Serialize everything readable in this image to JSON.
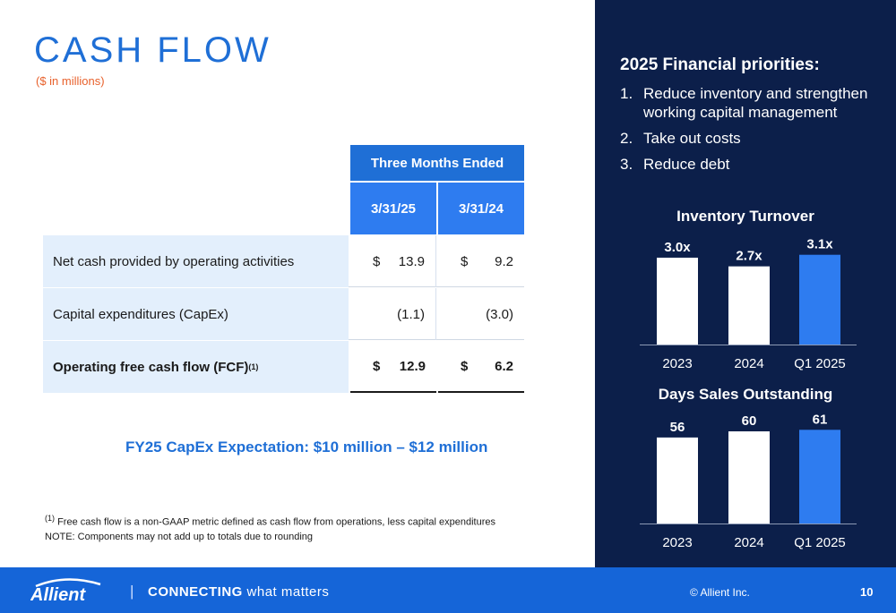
{
  "header": {
    "title": "CASH FLOW",
    "subtitle": "($ in millions)"
  },
  "table": {
    "group_header": "Three Months Ended",
    "columns": [
      "3/31/25",
      "3/31/24"
    ],
    "rows": [
      {
        "label": "Net cash provided by operating activities",
        "currency": "$",
        "v1": "13.9",
        "v2": "9.2"
      },
      {
        "label": "Capital expenditures (CapEx)",
        "currency": "",
        "v1": "(1.1)",
        "v2": "(3.0)"
      },
      {
        "label": "Operating free cash flow (FCF)",
        "label_sup": "(1)",
        "currency": "$",
        "v1": "12.9",
        "v2": "6.2"
      }
    ]
  },
  "capex_expectation": "FY25 CapEx Expectation: $10 million – $12 million",
  "footnotes": {
    "fn1_marker": "(1)",
    "fn1_text": "Free cash flow is a non-GAAP metric defined as cash flow from operations, less capital expenditures",
    "note": "NOTE: Components may not add up to totals due to rounding"
  },
  "priorities": {
    "title": "2025 Financial priorities:",
    "items": [
      {
        "num": "1.",
        "text": "Reduce inventory and strengthen working capital management"
      },
      {
        "num": "2.",
        "text": "Take out costs"
      },
      {
        "num": "3.",
        "text": "Reduce debt"
      }
    ]
  },
  "chart_data": [
    {
      "type": "bar",
      "title": "Inventory Turnover",
      "categories": [
        "2023",
        "2024",
        "Q1 2025"
      ],
      "values": [
        3.0,
        2.7,
        3.1
      ],
      "labels": [
        "3.0x",
        "2.7x",
        "3.1x"
      ],
      "ylim": [
        0,
        3.4
      ],
      "colors": [
        "#ffffff",
        "#ffffff",
        "#2e7cf0"
      ]
    },
    {
      "type": "bar",
      "title": "Days Sales Outstanding",
      "categories": [
        "2023",
        "2024",
        "Q1 2025"
      ],
      "values": [
        56,
        60,
        61
      ],
      "labels": [
        "56",
        "60",
        "61"
      ],
      "ylim": [
        0,
        67
      ],
      "colors": [
        "#ffffff",
        "#ffffff",
        "#2e7cf0"
      ]
    }
  ],
  "footer": {
    "logo": "Allient",
    "separator": "|",
    "tagline_strong": "CONNECTING",
    "tagline_rest": "what matters",
    "copyright": "© Allient Inc.",
    "page": "10"
  }
}
